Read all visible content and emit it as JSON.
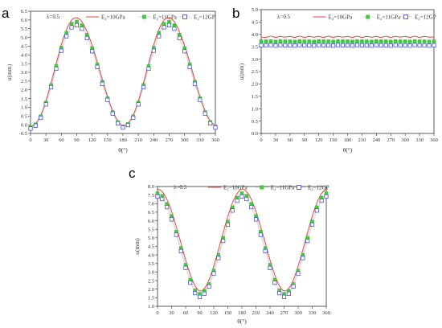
{
  "chart_data": [
    {
      "type": "line",
      "panel_label": "a",
      "annotation": "λ=0.5",
      "xlabel": "θ(°)",
      "ylabel": "u(mm)",
      "xlim": [
        0,
        360
      ],
      "ylim": [
        -0.5,
        6.5
      ],
      "xticks": [
        "0",
        "30",
        "60",
        "90",
        "120",
        "150",
        "180",
        "210",
        "240",
        "270",
        "300",
        "330",
        "360"
      ],
      "yticks": [
        "-0.5",
        "0.0",
        "0.5",
        "1.0",
        "1.5",
        "2.0",
        "2.5",
        "3.0",
        "3.5",
        "4.0",
        "4.5",
        "5.0",
        "5.5",
        "6.0",
        "6.5"
      ],
      "x": [
        0,
        10,
        20,
        30,
        40,
        50,
        60,
        70,
        80,
        90,
        100,
        110,
        120,
        130,
        140,
        150,
        160,
        170,
        180,
        190,
        200,
        210,
        220,
        230,
        240,
        250,
        260,
        270,
        280,
        290,
        300,
        310,
        320,
        330,
        340,
        350,
        360
      ],
      "series": [
        {
          "name": "E₂=10GPa",
          "style": "line",
          "color": "#e8443a",
          "values": [
            -0.1,
            0.07,
            0.55,
            1.37,
            2.4,
            3.51,
            4.59,
            5.45,
            5.99,
            6.12,
            5.9,
            5.33,
            4.54,
            3.59,
            2.58,
            1.62,
            0.8,
            0.22,
            -0.05,
            0.1,
            0.55,
            1.37,
            2.4,
            3.51,
            4.59,
            5.45,
            5.99,
            6.12,
            5.9,
            5.33,
            4.54,
            3.59,
            2.58,
            1.62,
            0.8,
            0.22,
            -0.05
          ]
        },
        {
          "name": "E₂=11GPa",
          "style": "square-marker",
          "color": "#3ec83e",
          "values": [
            -0.15,
            0.02,
            0.48,
            1.27,
            2.27,
            3.36,
            4.41,
            5.26,
            5.78,
            5.9,
            5.69,
            5.15,
            4.38,
            3.46,
            2.46,
            1.52,
            0.72,
            0.15,
            -0.1,
            0.04,
            0.48,
            1.27,
            2.27,
            3.36,
            4.41,
            5.26,
            5.78,
            5.9,
            5.69,
            5.15,
            4.38,
            3.46,
            2.46,
            1.52,
            0.72,
            0.15,
            -0.1
          ]
        },
        {
          "name": "E₂=12GP",
          "style": "open-square-marker",
          "color": "#4a55c8",
          "values": [
            -0.22,
            -0.05,
            0.4,
            1.17,
            2.15,
            3.21,
            4.24,
            5.07,
            5.58,
            5.7,
            5.5,
            4.96,
            4.21,
            3.31,
            2.34,
            1.42,
            0.64,
            0.08,
            -0.16,
            -0.02,
            0.4,
            1.17,
            2.15,
            3.21,
            4.24,
            5.07,
            5.58,
            5.7,
            5.5,
            4.96,
            4.21,
            3.31,
            2.34,
            1.42,
            0.64,
            0.08,
            -0.16
          ]
        }
      ]
    },
    {
      "type": "line",
      "panel_label": "b",
      "annotation": "λ=0.5",
      "xlabel": "θ(°)",
      "ylabel": "u(mm)",
      "xlim": [
        0,
        360
      ],
      "ylim": [
        0.0,
        5.0
      ],
      "xticks": [
        "0",
        "30",
        "60",
        "90",
        "120",
        "150",
        "180",
        "210",
        "240",
        "270",
        "300",
        "330",
        "360"
      ],
      "yticks": [
        "0.0",
        "0.5",
        "1.0",
        "1.5",
        "2.0",
        "2.5",
        "3.0",
        "3.5",
        "4.0",
        "4.5",
        "5.0"
      ],
      "x": [
        0,
        10,
        20,
        30,
        40,
        50,
        60,
        70,
        80,
        90,
        100,
        110,
        120,
        130,
        140,
        150,
        160,
        170,
        180,
        190,
        200,
        210,
        220,
        230,
        240,
        250,
        260,
        270,
        280,
        290,
        300,
        310,
        320,
        330,
        340,
        350,
        360
      ],
      "series": [
        {
          "name": "E₂=10GPa",
          "style": "line",
          "color": "#e8443a",
          "values": [
            3.9,
            3.88,
            3.93,
            3.88,
            3.92,
            3.89,
            3.92,
            3.88,
            3.93,
            3.88,
            3.92,
            3.89,
            3.92,
            3.88,
            3.93,
            3.88,
            3.92,
            3.89,
            3.92,
            3.88,
            3.93,
            3.88,
            3.92,
            3.89,
            3.92,
            3.88,
            3.93,
            3.88,
            3.92,
            3.89,
            3.92,
            3.88,
            3.93,
            3.88,
            3.92,
            3.89,
            3.9
          ]
        },
        {
          "name": "E₂=11GPa",
          "style": "square-marker",
          "color": "#3ec83e",
          "values": [
            3.72,
            3.72,
            3.73,
            3.71,
            3.73,
            3.72,
            3.72,
            3.71,
            3.73,
            3.72,
            3.72,
            3.71,
            3.73,
            3.72,
            3.72,
            3.71,
            3.73,
            3.72,
            3.72,
            3.71,
            3.73,
            3.72,
            3.72,
            3.71,
            3.73,
            3.72,
            3.72,
            3.71,
            3.73,
            3.72,
            3.72,
            3.71,
            3.73,
            3.72,
            3.72,
            3.71,
            3.72
          ]
        },
        {
          "name": "E₂=12GP",
          "style": "open-square-marker",
          "color": "#4a55c8",
          "values": [
            3.56,
            3.56,
            3.57,
            3.55,
            3.57,
            3.56,
            3.56,
            3.55,
            3.57,
            3.56,
            3.56,
            3.55,
            3.57,
            3.56,
            3.56,
            3.55,
            3.57,
            3.56,
            3.56,
            3.55,
            3.57,
            3.56,
            3.56,
            3.55,
            3.57,
            3.56,
            3.56,
            3.55,
            3.57,
            3.56,
            3.56,
            3.55,
            3.57,
            3.56,
            3.56,
            3.55,
            3.56
          ]
        }
      ]
    },
    {
      "type": "line",
      "panel_label": "c",
      "annotation": "λ=0.5",
      "xlabel": "θ(°)",
      "ylabel": "u(mm)",
      "xlim": [
        0,
        360
      ],
      "ylim": [
        1.0,
        8.0
      ],
      "xticks": [
        "0",
        "30",
        "60",
        "90",
        "120",
        "150",
        "180",
        "210",
        "240",
        "270",
        "300",
        "330",
        "360"
      ],
      "yticks": [
        "1.0",
        "1.5",
        "2.0",
        "2.5",
        "3.0",
        "3.5",
        "4.0",
        "4.5",
        "5.0",
        "5.5",
        "6.0",
        "6.5",
        "7.0",
        "7.5",
        "8.0"
      ],
      "x": [
        0,
        10,
        20,
        30,
        40,
        50,
        60,
        70,
        80,
        90,
        100,
        110,
        120,
        130,
        140,
        150,
        160,
        170,
        180,
        190,
        200,
        210,
        220,
        230,
        240,
        250,
        260,
        270,
        280,
        290,
        300,
        310,
        320,
        330,
        340,
        350,
        360
      ],
      "series": [
        {
          "name": "E₂=10GPa",
          "style": "line",
          "color": "#e8443a",
          "values": [
            7.85,
            7.7,
            7.25,
            6.55,
            5.65,
            4.7,
            3.7,
            2.85,
            2.2,
            1.9,
            2.05,
            2.55,
            3.35,
            4.3,
            5.3,
            6.25,
            7.05,
            7.6,
            7.85,
            7.7,
            7.25,
            6.55,
            5.65,
            4.7,
            3.7,
            2.85,
            2.2,
            1.9,
            2.05,
            2.55,
            3.35,
            4.3,
            5.3,
            6.25,
            7.05,
            7.6,
            7.85
          ]
        },
        {
          "name": "E₂=11GPa",
          "style": "square-marker",
          "color": "#3ec83e",
          "values": [
            7.6,
            7.45,
            6.98,
            6.27,
            5.36,
            4.4,
            3.42,
            2.55,
            1.93,
            1.72,
            1.9,
            2.3,
            3.08,
            4.0,
            5.0,
            5.95,
            6.78,
            7.35,
            7.6,
            7.45,
            6.98,
            6.27,
            5.36,
            4.4,
            3.42,
            2.55,
            1.93,
            1.72,
            1.9,
            2.3,
            3.08,
            4.0,
            5.0,
            5.95,
            6.78,
            7.35,
            7.6
          ]
        },
        {
          "name": "E₂=12GP",
          "style": "open-square-marker",
          "color": "#4a55c8",
          "values": [
            7.42,
            7.27,
            6.8,
            6.08,
            5.18,
            4.22,
            3.24,
            2.38,
            1.77,
            1.55,
            1.74,
            2.16,
            2.92,
            3.82,
            4.82,
            5.77,
            6.6,
            7.17,
            7.42,
            7.27,
            6.8,
            6.08,
            5.18,
            4.22,
            3.24,
            2.38,
            1.77,
            1.55,
            1.74,
            2.16,
            2.92,
            3.82,
            4.82,
            5.77,
            6.6,
            7.17,
            7.42
          ]
        }
      ]
    }
  ]
}
